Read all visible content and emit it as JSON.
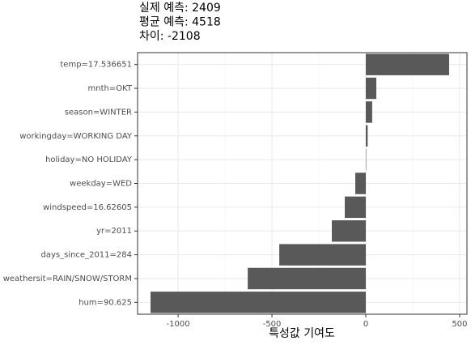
{
  "chart_data": {
    "type": "barh",
    "title_lines": [
      "실제 예측: 2409",
      "평균 예측: 4518",
      "차이: -2108"
    ],
    "x_label": "특성값 기여도",
    "categories": [
      "temp=17.536651",
      "mnth=OKT",
      "season=WINTER",
      "workingday=WORKING DAY",
      "holiday=NO HOLIDAY",
      "weekday=WED",
      "windspeed=16.62605",
      "yr=2011",
      "days_since_2011=284",
      "weathersit=RAIN/SNOW/STORM",
      "hum=90.625"
    ],
    "values": [
      444,
      56,
      34,
      10,
      2,
      -56,
      -112,
      -181,
      -461,
      -629,
      -1147
    ],
    "color": "#595959",
    "xlim": [
      -1216,
      539
    ],
    "xticks": [
      -1000,
      -500,
      0,
      500
    ],
    "minor_xticks": [
      -750,
      -250,
      250
    ],
    "grid": true
  }
}
